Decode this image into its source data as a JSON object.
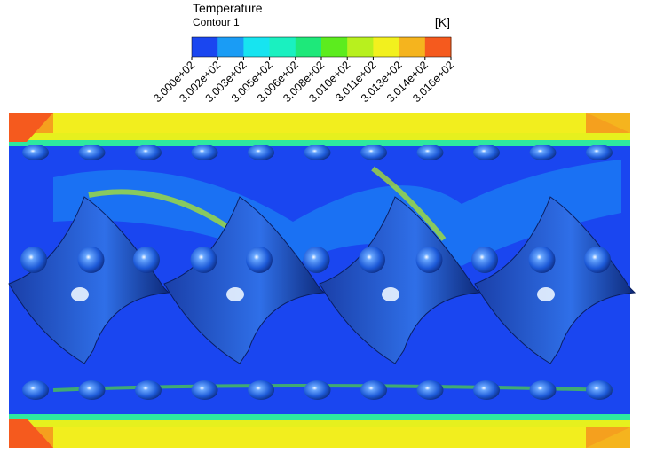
{
  "legend": {
    "title": "Temperature",
    "subtitle": "Contour 1",
    "unit": "[K]",
    "colors": [
      "#1a46f0",
      "#1a9cf5",
      "#17e4f0",
      "#1af0c0",
      "#1ee87a",
      "#5cec1e",
      "#b8f01e",
      "#f2f01e",
      "#f5b41e",
      "#f55a1e"
    ],
    "labels": [
      "3.000e+02",
      "3.002e+02",
      "3.003e+02",
      "3.005e+02",
      "3.006e+02",
      "3.008e+02",
      "3.010e+02",
      "3.011e+02",
      "3.013e+02",
      "3.014e+02",
      "3.016e+02"
    ]
  }
}
